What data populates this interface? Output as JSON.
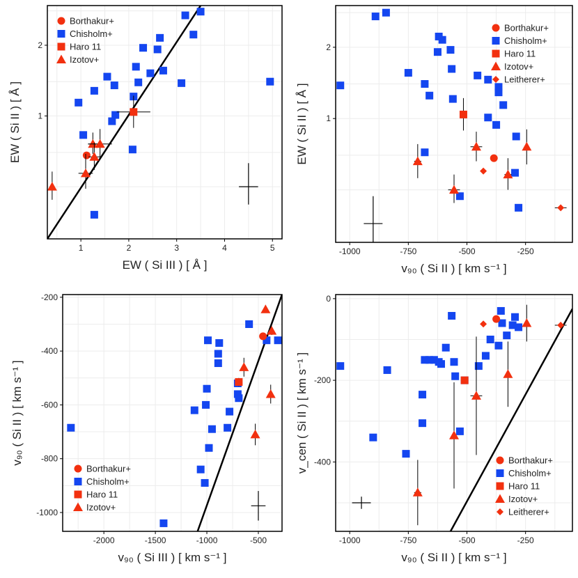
{
  "colors": {
    "blue": "#1446f0",
    "red": "#f2300f",
    "frame": "#000000",
    "grid": "#ececec"
  },
  "chart_data": [
    {
      "id": "p1",
      "type": "scatter",
      "xlabel": "EW ( Si III ) [ Å ]",
      "ylabel": "EW ( Si II ) [ Å ]",
      "xlim": [
        0.3,
        5.2
      ],
      "ylim": [
        0.3,
        2.95
      ],
      "ylog": true,
      "xticks": [
        "1",
        "2",
        "3",
        "4",
        "5"
      ],
      "xtick_values": [
        1,
        2,
        3,
        4,
        5
      ],
      "yticks": [
        "1",
        "2"
      ],
      "ytick_values": [
        1,
        2
      ],
      "grid_x": [
        0.5,
        1,
        1.5,
        2,
        2.5,
        3,
        3.5,
        4,
        4.5,
        5
      ],
      "grid_y": [
        0.5,
        0.7,
        1,
        1.4,
        2,
        2.8
      ],
      "legend": {
        "position": "top-left",
        "entries": [
          {
            "label": "Borthakur+",
            "marker": "circle"
          },
          {
            "label": "Chisholm+",
            "marker": "square"
          },
          {
            "label": "Haro 11",
            "marker": "square-red"
          },
          {
            "label": "Izotov+",
            "marker": "triangle"
          }
        ]
      },
      "lines": [
        {
          "points": [
            [
              0.3,
              0.3
            ],
            [
              3.5,
              2.95
            ]
          ]
        }
      ],
      "crosses": [
        {
          "x": 4.5,
          "y": 0.5,
          "xerr": 0.2,
          "yerr_lo": 0.08,
          "yerr_hi": 0.13
        }
      ],
      "series": [
        {
          "name": "Chisholm+",
          "marker": "square",
          "color": "#1446f0",
          "points": [
            [
              3.5,
              2.78
            ],
            [
              3.18,
              2.68
            ],
            [
              3.35,
              2.22
            ],
            [
              2.65,
              2.15
            ],
            [
              2.3,
              1.95
            ],
            [
              2.6,
              1.92
            ],
            [
              2.15,
              1.62
            ],
            [
              2.72,
              1.56
            ],
            [
              1.55,
              1.47
            ],
            [
              2.45,
              1.52
            ],
            [
              2.2,
              1.39
            ],
            [
              3.1,
              1.38
            ],
            [
              4.95,
              1.4
            ],
            [
              1.7,
              1.35
            ],
            [
              1.28,
              1.28
            ],
            [
              2.1,
              1.21
            ],
            [
              0.95,
              1.14
            ],
            [
              1.72,
              1.01
            ],
            [
              1.65,
              0.95
            ],
            [
              1.05,
              0.83
            ],
            [
              2.08,
              0.72
            ],
            [
              1.28,
              0.38
            ]
          ]
        },
        {
          "name": "Borthakur+",
          "marker": "circle",
          "color": "#f2300f",
          "points": [
            [
              1.12,
              0.68
            ]
          ]
        },
        {
          "name": "Haro 11",
          "marker": "square",
          "color": "#f2300f",
          "points": [
            [
              2.1,
              1.04,
              0.35,
              0.15,
              0.18
            ]
          ]
        },
        {
          "name": "Izotov+",
          "marker": "triangle",
          "color": "#f2300f",
          "points": [
            [
              0.4,
              0.5,
              0,
              0.06,
              0.08
            ],
            [
              1.1,
              0.57,
              0.15,
              0.08,
              0.12
            ],
            [
              1.25,
              0.76,
              0.1,
              0.07,
              0.09
            ],
            [
              1.28,
              0.67,
              0.12,
              0.08,
              0.1
            ],
            [
              1.4,
              0.76,
              0.25,
              0.1,
              0.12
            ]
          ]
        }
      ]
    },
    {
      "id": "p2",
      "type": "scatter",
      "xlabel": "v₉₀ ( Si II ) [ km s⁻¹ ]",
      "ylabel": "EW ( Si II ) [ Å ]",
      "xlim": [
        -1060,
        -50
      ],
      "ylim": [
        0.3,
        3.0
      ],
      "ylog": true,
      "xticks": [
        "-1000",
        "-750",
        "-500",
        "-250"
      ],
      "xtick_values": [
        -1000,
        -750,
        -500,
        -250
      ],
      "yticks": [
        "1",
        "2"
      ],
      "ytick_values": [
        1,
        2
      ],
      "grid_x": [
        -1000,
        -875,
        -750,
        -625,
        -500,
        -375,
        -250,
        -125
      ],
      "grid_y": [
        0.5,
        0.7,
        1,
        1.4,
        2,
        2.8
      ],
      "legend": {
        "position": "top-right",
        "entries": [
          {
            "label": "Borthakur+",
            "marker": "circle"
          },
          {
            "label": "Chisholm+",
            "marker": "square"
          },
          {
            "label": "Haro 11",
            "marker": "square-red"
          },
          {
            "label": "Izotov+",
            "marker": "triangle"
          },
          {
            "label": "Leitherer+",
            "marker": "diamond"
          }
        ]
      },
      "lines": [],
      "crosses": [
        {
          "x": -900,
          "y": 0.36,
          "xerr": 40,
          "yerr_lo": 0.06,
          "yerr_hi": 0.11
        }
      ],
      "series": [
        {
          "name": "Chisholm+",
          "marker": "square",
          "color": "#1446f0",
          "points": [
            [
              -845,
              2.8
            ],
            [
              -890,
              2.7
            ],
            [
              -620,
              2.22
            ],
            [
              -605,
              2.15
            ],
            [
              -625,
              1.91
            ],
            [
              -570,
              1.95
            ],
            [
              -565,
              1.62
            ],
            [
              -750,
              1.56
            ],
            [
              -455,
              1.52
            ],
            [
              -410,
              1.46
            ],
            [
              -1040,
              1.38
            ],
            [
              -680,
              1.4
            ],
            [
              -365,
              1.36
            ],
            [
              -365,
              1.29
            ],
            [
              -660,
              1.25
            ],
            [
              -560,
              1.21
            ],
            [
              -345,
              1.14
            ],
            [
              -410,
              1.01
            ],
            [
              -375,
              0.94
            ],
            [
              -290,
              0.84
            ],
            [
              -680,
              0.72
            ],
            [
              -295,
              0.59
            ],
            [
              -530,
              0.47
            ],
            [
              -280,
              0.42
            ]
          ]
        },
        {
          "name": "Borthakur+",
          "marker": "circle",
          "color": "#f2300f",
          "points": [
            [
              -385,
              0.68
            ]
          ]
        },
        {
          "name": "Haro 11",
          "marker": "square",
          "color": "#f2300f",
          "points": [
            [
              -515,
              1.04,
              0,
              0.15,
              0.18
            ]
          ]
        },
        {
          "name": "Izotov+",
          "marker": "triangle",
          "color": "#f2300f",
          "points": [
            [
              -710,
              0.66,
              15,
              0.1,
              0.12
            ],
            [
              -555,
              0.5,
              25,
              0.06,
              0.08
            ],
            [
              -460,
              0.76,
              25,
              0.1,
              0.12
            ],
            [
              -325,
              0.58,
              15,
              0.08,
              0.1
            ],
            [
              -245,
              0.76,
              0,
              0.12,
              0.14
            ]
          ]
        },
        {
          "name": "Leitherer+",
          "marker": "diamond",
          "color": "#f2300f",
          "points": [
            [
              -430,
              0.6,
              0,
              0,
              0
            ],
            [
              -100,
              0.42,
              25,
              0,
              0
            ]
          ]
        }
      ]
    },
    {
      "id": "p3",
      "type": "scatter",
      "xlabel": "v₉₀ ( Si III ) [ km s⁻¹ ]",
      "ylabel": "v₉₀ ( Si II ) [ km s⁻¹ ]",
      "xlim": [
        -2400,
        -270
      ],
      "ylim": [
        -1070,
        -190
      ],
      "ylog": false,
      "xticks": [
        "-2000",
        "-1500",
        "-1000",
        "-500"
      ],
      "xtick_values": [
        -2000,
        -1500,
        -1000,
        -500
      ],
      "yticks": [
        "-1000",
        "-800",
        "-600",
        "-400",
        "-200"
      ],
      "ytick_values": [
        -1000,
        -800,
        -600,
        -400,
        -200
      ],
      "grid_x": [
        -2250,
        -2000,
        -1750,
        -1500,
        -1250,
        -1000,
        -750,
        -500
      ],
      "grid_y": [
        -1000,
        -900,
        -800,
        -700,
        -600,
        -500,
        -400,
        -300,
        -200
      ],
      "legend": {
        "position": "bottom-left",
        "entries": [
          {
            "label": "Borthakur+",
            "marker": "circle"
          },
          {
            "label": "Chisholm+",
            "marker": "square"
          },
          {
            "label": "Haro 11",
            "marker": "square-red"
          },
          {
            "label": "Izotov+",
            "marker": "triangle"
          }
        ]
      },
      "lines": [
        {
          "points": [
            [
              -1090,
              -1070
            ],
            [
              -270,
              -190
            ]
          ]
        }
      ],
      "crosses": [
        {
          "x": -500,
          "y": -975,
          "xerr": 70,
          "yerr_lo": 55,
          "yerr_hi": 55
        }
      ],
      "series": [
        {
          "name": "Chisholm+",
          "marker": "square",
          "color": "#1446f0",
          "points": [
            [
              -2320,
              -685
            ],
            [
              -1420,
              -1040
            ],
            [
              -1120,
              -620
            ],
            [
              -1060,
              -840
            ],
            [
              -1020,
              -890
            ],
            [
              -980,
              -760
            ],
            [
              -990,
              -360
            ],
            [
              -1000,
              -540
            ],
            [
              -1010,
              -600
            ],
            [
              -950,
              -690
            ],
            [
              -880,
              -370
            ],
            [
              -890,
              -410
            ],
            [
              -890,
              -445
            ],
            [
              -800,
              -685
            ],
            [
              -780,
              -625
            ],
            [
              -700,
              -520
            ],
            [
              -700,
              -560
            ],
            [
              -690,
              -575
            ],
            [
              -590,
              -300
            ],
            [
              -420,
              -360
            ],
            [
              -310,
              -360
            ]
          ]
        },
        {
          "name": "Borthakur+",
          "marker": "circle",
          "color": "#f2300f",
          "points": [
            [
              -455,
              -345
            ]
          ]
        },
        {
          "name": "Haro 11",
          "marker": "square",
          "color": "#f2300f",
          "points": [
            [
              -690,
              -515,
              0,
              15,
              15
            ]
          ]
        },
        {
          "name": "Izotov+",
          "marker": "triangle",
          "color": "#f2300f",
          "points": [
            [
              -430,
              -245,
              0,
              0,
              0
            ],
            [
              -370,
              -325,
              0,
              15,
              15
            ],
            [
              -640,
              -460,
              0,
              35,
              35
            ],
            [
              -530,
              -710,
              0,
              40,
              40
            ],
            [
              -380,
              -560,
              0,
              35,
              35
            ]
          ]
        }
      ]
    },
    {
      "id": "p4",
      "type": "scatter",
      "xlabel": "v₉₀ ( Si II ) [ km s⁻¹ ]",
      "ylabel": "v_cen ( Si II ) [ km s⁻¹ ]",
      "xlim": [
        -1060,
        -50
      ],
      "ylim": [
        -570,
        10
      ],
      "ylog": false,
      "xticks": [
        "-1000",
        "-750",
        "-500",
        "-250"
      ],
      "xtick_values": [
        -1000,
        -750,
        -500,
        -250
      ],
      "yticks": [
        "-400",
        "-200",
        "0"
      ],
      "ytick_values": [
        -400,
        -200,
        0
      ],
      "grid_x": [
        -1000,
        -875,
        -750,
        -625,
        -500,
        -375,
        -250,
        -125
      ],
      "grid_y": [
        -500,
        -400,
        -300,
        -200,
        -100,
        0
      ],
      "legend": {
        "position": "bottom-right",
        "entries": [
          {
            "label": "Borthakur+",
            "marker": "circle"
          },
          {
            "label": "Chisholm+",
            "marker": "square"
          },
          {
            "label": "Haro 11",
            "marker": "square-red"
          },
          {
            "label": "Izotov+",
            "marker": "triangle"
          },
          {
            "label": "Leitherer+",
            "marker": "diamond"
          }
        ]
      },
      "lines": [
        {
          "points": [
            [
              -570,
              -570
            ],
            [
              -50,
              -25
            ]
          ]
        }
      ],
      "crosses": [
        {
          "x": -950,
          "y": -500,
          "xerr": 40,
          "yerr_lo": 15,
          "yerr_hi": 15
        }
      ],
      "series": [
        {
          "name": "Chisholm+",
          "marker": "square",
          "color": "#1446f0",
          "points": [
            [
              -1040,
              -165
            ],
            [
              -900,
              -340
            ],
            [
              -840,
              -175
            ],
            [
              -760,
              -380
            ],
            [
              -690,
              -305
            ],
            [
              -690,
              -235
            ],
            [
              -680,
              -150
            ],
            [
              -660,
              -150
            ],
            [
              -640,
              -150
            ],
            [
              -620,
              -155
            ],
            [
              -610,
              -160
            ],
            [
              -590,
              -120
            ],
            [
              -565,
              -42
            ],
            [
              -555,
              -155
            ],
            [
              -550,
              -190
            ],
            [
              -530,
              -325
            ],
            [
              -510,
              -200
            ],
            [
              -450,
              -165
            ],
            [
              -420,
              -140
            ],
            [
              -400,
              -100
            ],
            [
              -365,
              -115
            ],
            [
              -355,
              -30
            ],
            [
              -350,
              -60
            ],
            [
              -330,
              -90
            ],
            [
              -305,
              -65
            ],
            [
              -295,
              -45
            ],
            [
              -280,
              -70
            ]
          ]
        },
        {
          "name": "Borthakur+",
          "marker": "circle",
          "color": "#f2300f",
          "points": [
            [
              -375,
              -50
            ]
          ]
        },
        {
          "name": "Haro 11",
          "marker": "square",
          "color": "#f2300f",
          "points": [
            [
              -510,
              -200,
              0,
              0,
              0
            ]
          ]
        },
        {
          "name": "Izotov+",
          "marker": "triangle",
          "color": "#f2300f",
          "points": [
            [
              -710,
              -475,
              15,
              80,
              80
            ],
            [
              -555,
              -335,
              0,
              130,
              130
            ],
            [
              -460,
              -238,
              25,
              145,
              145
            ],
            [
              -325,
              -185,
              0,
              80,
              80
            ],
            [
              -245,
              -60,
              0,
              45,
              45
            ]
          ]
        },
        {
          "name": "Leitherer+",
          "marker": "diamond",
          "color": "#f2300f",
          "points": [
            [
              -430,
              -62,
              0,
              0,
              0
            ],
            [
              -100,
              -65,
              25,
              0,
              0
            ]
          ]
        }
      ]
    }
  ]
}
